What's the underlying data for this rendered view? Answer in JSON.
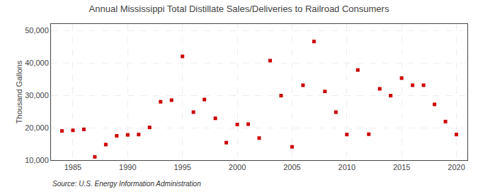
{
  "chart_data": {
    "type": "scatter",
    "title": "Annual Mississippi Total Distillate Sales/Deliveries to Railroad Consumers",
    "ylabel": "Thousand Gallons",
    "annotations": [
      "Source: U.S. Energy Information Administration"
    ],
    "x": [
      1984,
      1985,
      1986,
      1987,
      1988,
      1989,
      1990,
      1991,
      1992,
      1993,
      1994,
      1995,
      1996,
      1997,
      1998,
      1999,
      2000,
      2001,
      2002,
      2003,
      2004,
      2005,
      2006,
      2007,
      2008,
      2009,
      2010,
      2011,
      2012,
      2013,
      2014,
      2015,
      2016,
      2017,
      2018,
      2019,
      2020
    ],
    "values": [
      19000,
      19200,
      19500,
      11000,
      14800,
      17500,
      17800,
      17900,
      20100,
      28000,
      28500,
      42000,
      24800,
      28700,
      22900,
      15400,
      21000,
      21100,
      16800,
      40700,
      29900,
      14100,
      33100,
      46600,
      31200,
      24800,
      17900,
      37800,
      18000,
      32000,
      29900,
      35300,
      33100,
      33100,
      27200,
      21900,
      17900
    ],
    "color": "#cc0000",
    "marker": "square",
    "xlim": [
      1983,
      2021
    ],
    "ylim": [
      10000,
      52000
    ],
    "xticks": [
      1985,
      1990,
      1995,
      2000,
      2005,
      2010,
      2015,
      2020
    ],
    "yticks": [
      {
        "value": 10000,
        "label": "10,000"
      },
      {
        "value": 20000,
        "label": "20,000"
      },
      {
        "value": 30000,
        "label": "30,000"
      },
      {
        "value": 40000,
        "label": "40,000"
      },
      {
        "value": 50000,
        "label": "50,000"
      }
    ],
    "grid": true
  }
}
